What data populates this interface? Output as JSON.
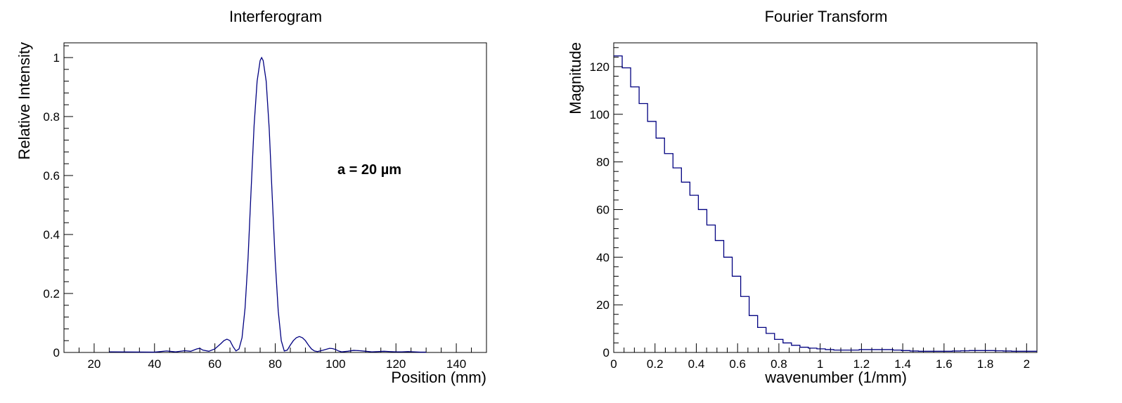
{
  "chart_data": [
    {
      "type": "line",
      "title": "Interferogram",
      "xlabel": "Position (mm)",
      "ylabel": "Relative Intensity",
      "xlim": [
        10,
        150
      ],
      "ylim": [
        0,
        1.05
      ],
      "xticks": [
        20,
        40,
        60,
        80,
        100,
        120,
        140
      ],
      "xtick_labels": [
        "20",
        "40",
        "60",
        "80",
        "100",
        "120",
        "140"
      ],
      "yticks": [
        0,
        0.2,
        0.4,
        0.6,
        0.8,
        1
      ],
      "ytick_labels": [
        "0",
        "0.2",
        "0.4",
        "0.6",
        "0.8",
        "1"
      ],
      "annotation": "a = 20  µm",
      "grid": false,
      "series": [
        {
          "color": "#000080",
          "x": [
            25,
            40,
            44,
            47,
            50,
            52,
            54,
            55,
            56,
            58,
            60,
            62,
            63,
            64,
            65,
            66,
            67,
            68,
            69,
            70,
            71,
            72,
            73,
            74,
            75,
            75.5,
            76,
            77,
            78,
            79,
            80,
            81,
            82,
            83,
            84,
            85,
            86,
            87,
            88,
            89,
            90,
            91,
            92,
            93,
            94,
            96,
            98,
            99,
            100,
            101,
            102,
            104,
            106,
            108,
            110,
            112,
            114,
            116,
            118,
            120,
            122,
            124,
            126,
            128,
            130
          ],
          "y": [
            0.002,
            0.001,
            0.005,
            0.002,
            0.006,
            0.004,
            0.012,
            0.014,
            0.008,
            0.004,
            0.012,
            0.03,
            0.04,
            0.045,
            0.04,
            0.02,
            0.005,
            0.012,
            0.05,
            0.15,
            0.32,
            0.55,
            0.77,
            0.92,
            0.99,
            1.0,
            0.99,
            0.92,
            0.76,
            0.53,
            0.31,
            0.14,
            0.04,
            0.005,
            0.008,
            0.025,
            0.04,
            0.05,
            0.054,
            0.05,
            0.04,
            0.025,
            0.012,
            0.005,
            0.003,
            0.008,
            0.014,
            0.013,
            0.01,
            0.005,
            0.002,
            0.004,
            0.007,
            0.006,
            0.004,
            0.002,
            0.003,
            0.004,
            0.003,
            0.002,
            0.002,
            0.003,
            0.002,
            0.001,
            0.001
          ]
        }
      ]
    },
    {
      "type": "bar",
      "title": "Fourier Transform",
      "xlabel": "wavenumber (1/mm)",
      "ylabel": "Magnitude",
      "xlim": [
        0,
        2.05
      ],
      "ylim": [
        0,
        130
      ],
      "xticks": [
        0,
        0.2,
        0.4,
        0.6,
        0.8,
        1,
        1.2,
        1.4,
        1.6,
        1.8,
        2
      ],
      "xtick_labels": [
        "0",
        "0.2",
        "0.4",
        "0.6",
        "0.8",
        "1",
        "1.2",
        "1.4",
        "1.6",
        "1.8",
        "2"
      ],
      "yticks": [
        0,
        20,
        40,
        60,
        80,
        100,
        120
      ],
      "ytick_labels": [
        "0",
        "20",
        "40",
        "60",
        "80",
        "100",
        "120"
      ],
      "grid": false,
      "bin_width": 0.041,
      "series": [
        {
          "color": "#000080",
          "values": [
            124.5,
            119.5,
            111.5,
            104.5,
            97.0,
            90.0,
            83.5,
            77.5,
            71.5,
            66.0,
            60.0,
            53.5,
            47.0,
            40.0,
            32.0,
            23.5,
            15.5,
            10.5,
            8.0,
            5.5,
            4.0,
            3.0,
            2.2,
            1.8,
            1.5,
            1.2,
            1.0,
            1.0,
            1.0,
            1.2,
            1.2,
            1.2,
            1.2,
            1.0,
            0.8,
            0.6,
            0.5,
            0.5,
            0.5,
            0.5,
            0.6,
            0.7,
            0.8,
            0.8,
            0.8,
            0.7,
            0.6,
            0.5,
            0.5,
            0.5
          ]
        }
      ]
    }
  ]
}
